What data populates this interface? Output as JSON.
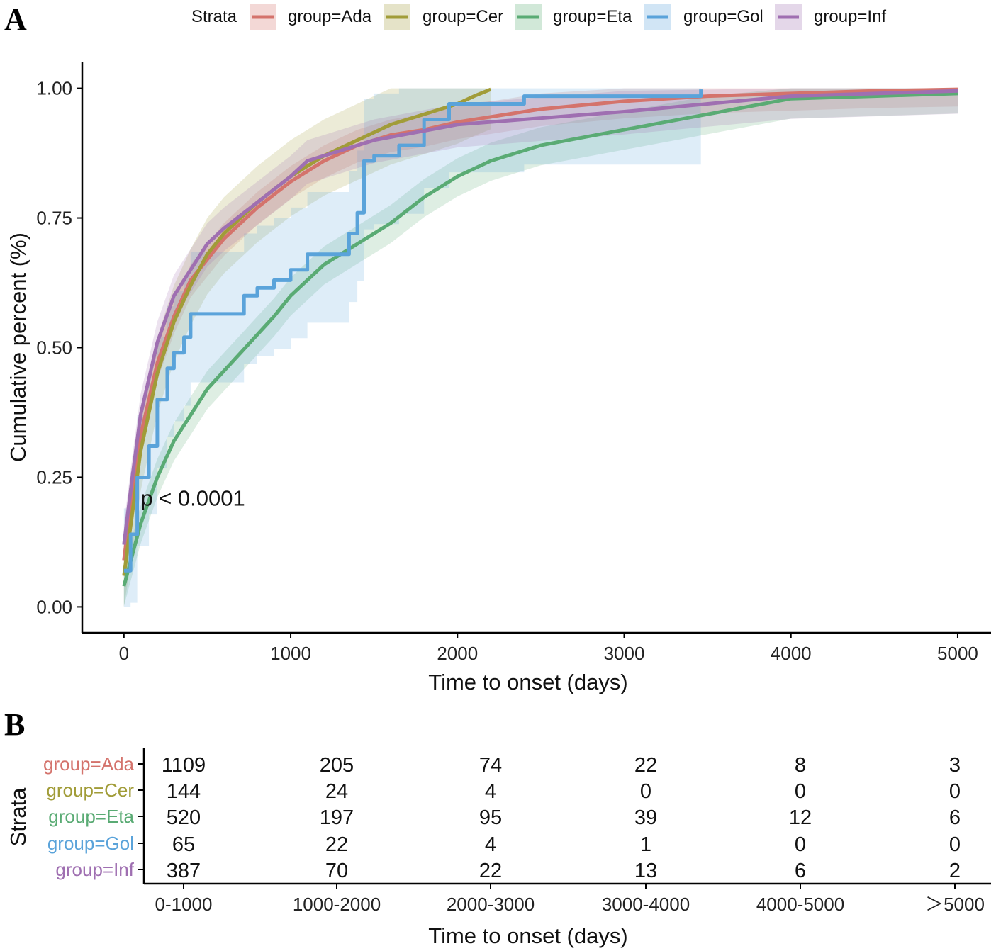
{
  "panel_a_letter": "A",
  "panel_b_letter": "B",
  "legend": {
    "title": "Strata",
    "items": [
      {
        "label": "group=Ada",
        "color": "#d4736c"
      },
      {
        "label": "group=Cer",
        "color": "#a19c38"
      },
      {
        "label": "group=Eta",
        "color": "#5aab74"
      },
      {
        "label": "group=Gol",
        "color": "#5aa3da"
      },
      {
        "label": "group=Inf",
        "color": "#9f6fb1"
      }
    ]
  },
  "chart_data": [
    {
      "type": "line",
      "title": "",
      "xlabel": "Time to onset (days)",
      "ylabel": "Cumulative percent (%)",
      "xlim": [
        -250,
        5200
      ],
      "ylim": [
        -0.05,
        1.05
      ],
      "xticks": [
        {
          "label": "0",
          "value": 0
        },
        {
          "label": "1000",
          "value": 1000
        },
        {
          "label": "2000",
          "value": 2000
        },
        {
          "label": "3000",
          "value": 3000
        },
        {
          "label": "4000",
          "value": 4000
        },
        {
          "label": "5000",
          "value": 5000
        }
      ],
      "yticks": [
        {
          "label": "0.00",
          "value": 0
        },
        {
          "label": "0.25",
          "value": 0.25
        },
        {
          "label": "0.50",
          "value": 0.5
        },
        {
          "label": "0.75",
          "value": 0.75
        },
        {
          "label": "1.00",
          "value": 1
        }
      ],
      "annotation": "p < 0.0001",
      "annotation_pos": {
        "x": 100,
        "y": 0.195
      },
      "series": [
        {
          "name": "group=Ada",
          "color": "#d4736c",
          "band": 0.03,
          "points": [
            [
              0,
              0.09
            ],
            [
              50,
              0.22
            ],
            [
              100,
              0.33
            ],
            [
              200,
              0.47
            ],
            [
              300,
              0.56
            ],
            [
              400,
              0.63
            ],
            [
              500,
              0.67
            ],
            [
              600,
              0.71
            ],
            [
              800,
              0.77
            ],
            [
              1000,
              0.82
            ],
            [
              1200,
              0.86
            ],
            [
              1400,
              0.89
            ],
            [
              1600,
              0.91
            ],
            [
              1800,
              0.92
            ],
            [
              2000,
              0.935
            ],
            [
              2500,
              0.96
            ],
            [
              3000,
              0.975
            ],
            [
              3500,
              0.985
            ],
            [
              4000,
              0.99
            ],
            [
              4500,
              0.995
            ],
            [
              5000,
              0.998
            ]
          ]
        },
        {
          "name": "group=Cer",
          "color": "#a19c38",
          "band": 0.07,
          "points": [
            [
              0,
              0.06
            ],
            [
              50,
              0.18
            ],
            [
              100,
              0.3
            ],
            [
              200,
              0.45
            ],
            [
              300,
              0.55
            ],
            [
              400,
              0.62
            ],
            [
              500,
              0.68
            ],
            [
              600,
              0.72
            ],
            [
              800,
              0.78
            ],
            [
              1000,
              0.83
            ],
            [
              1200,
              0.87
            ],
            [
              1400,
              0.9
            ],
            [
              1600,
              0.93
            ],
            [
              1800,
              0.95
            ],
            [
              2000,
              0.97
            ],
            [
              2100,
              0.985
            ],
            [
              2200,
              0.998
            ]
          ]
        },
        {
          "name": "group=Eta",
          "color": "#5aab74",
          "band": 0.035,
          "points": [
            [
              0,
              0.04
            ],
            [
              50,
              0.1
            ],
            [
              100,
              0.16
            ],
            [
              200,
              0.25
            ],
            [
              300,
              0.32
            ],
            [
              400,
              0.37
            ],
            [
              500,
              0.42
            ],
            [
              700,
              0.49
            ],
            [
              900,
              0.56
            ],
            [
              1000,
              0.6
            ],
            [
              1200,
              0.66
            ],
            [
              1400,
              0.7
            ],
            [
              1600,
              0.74
            ],
            [
              1800,
              0.79
            ],
            [
              2000,
              0.83
            ],
            [
              2200,
              0.86
            ],
            [
              2500,
              0.89
            ],
            [
              3000,
              0.92
            ],
            [
              3500,
              0.95
            ],
            [
              4000,
              0.98
            ],
            [
              4500,
              0.985
            ],
            [
              5000,
              0.99
            ]
          ]
        },
        {
          "name": "group=Gol",
          "color": "#5aa3da",
          "band": 0.12,
          "step": true,
          "points": [
            [
              0,
              0.07
            ],
            [
              40,
              0.14
            ],
            [
              80,
              0.25
            ],
            [
              150,
              0.31
            ],
            [
              200,
              0.4
            ],
            [
              260,
              0.46
            ],
            [
              300,
              0.49
            ],
            [
              360,
              0.52
            ],
            [
              400,
              0.565
            ],
            [
              720,
              0.6
            ],
            [
              800,
              0.615
            ],
            [
              900,
              0.63
            ],
            [
              1000,
              0.65
            ],
            [
              1100,
              0.68
            ],
            [
              1350,
              0.72
            ],
            [
              1400,
              0.76
            ],
            [
              1440,
              0.86
            ],
            [
              1500,
              0.87
            ],
            [
              1650,
              0.89
            ],
            [
              1800,
              0.94
            ],
            [
              1950,
              0.97
            ],
            [
              2400,
              0.985
            ],
            [
              3460,
              0.998
            ]
          ]
        },
        {
          "name": "group=Inf",
          "color": "#9f6fb1",
          "band": 0.04,
          "points": [
            [
              0,
              0.12
            ],
            [
              50,
              0.25
            ],
            [
              100,
              0.37
            ],
            [
              200,
              0.51
            ],
            [
              300,
              0.6
            ],
            [
              400,
              0.65
            ],
            [
              500,
              0.7
            ],
            [
              600,
              0.73
            ],
            [
              800,
              0.78
            ],
            [
              1000,
              0.83
            ],
            [
              1100,
              0.86
            ],
            [
              1300,
              0.88
            ],
            [
              1500,
              0.9
            ],
            [
              2000,
              0.93
            ],
            [
              3000,
              0.955
            ],
            [
              4000,
              0.985
            ],
            [
              5000,
              0.995
            ]
          ]
        }
      ]
    },
    {
      "type": "table",
      "title": "",
      "xlabel": "Time to onset (days)",
      "ylabel": "Strata",
      "columns": [
        "0-1000",
        "1000-2000",
        "2000-3000",
        "3000-4000",
        "4000-5000",
        "＞5000"
      ],
      "rows": [
        {
          "label": "group=Ada",
          "color": "#d4736c",
          "values": [
            "1109",
            "205",
            "74",
            "22",
            "8",
            "3"
          ]
        },
        {
          "label": "group=Cer",
          "color": "#a19c38",
          "values": [
            "144",
            "24",
            "4",
            "0",
            "0",
            "0"
          ]
        },
        {
          "label": "group=Eta",
          "color": "#5aab74",
          "values": [
            "520",
            "197",
            "95",
            "39",
            "12",
            "6"
          ]
        },
        {
          "label": "group=Gol",
          "color": "#5aa3da",
          "values": [
            "65",
            "22",
            "4",
            "1",
            "0",
            "0"
          ]
        },
        {
          "label": "group=Inf",
          "color": "#9f6fb1",
          "values": [
            "387",
            "70",
            "22",
            "13",
            "6",
            "2"
          ]
        }
      ]
    }
  ]
}
